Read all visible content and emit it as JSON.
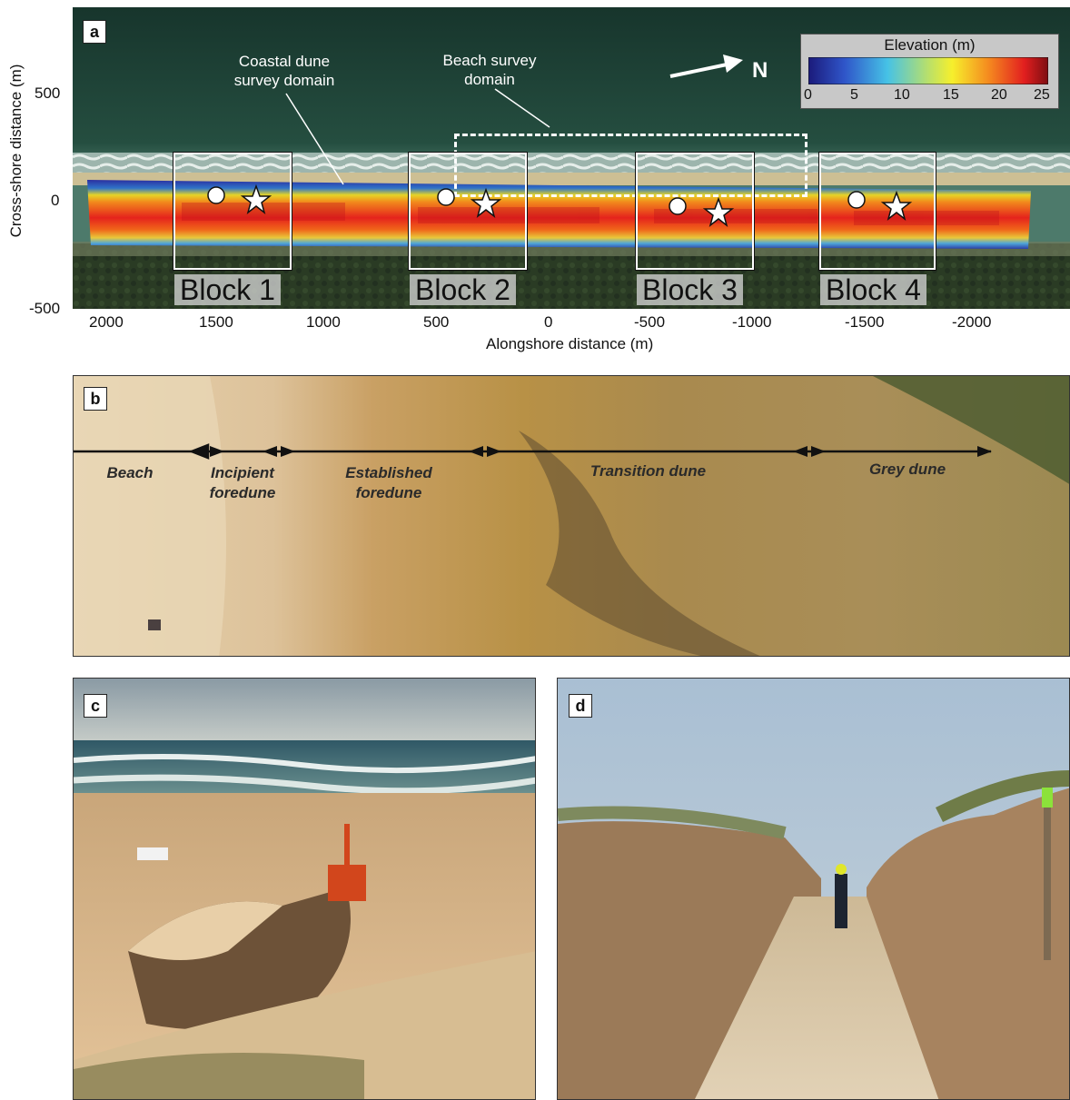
{
  "panel_a": {
    "letter": "a",
    "y_axis_label": "Cross-shore distance (m)",
    "x_axis_label": "Alongshore distance (m)",
    "y_ticks": [
      "500",
      "0",
      "-500"
    ],
    "x_ticks": [
      "2000",
      "1500",
      "1000",
      "500",
      "0",
      "-500",
      "-1000",
      "-1500",
      "-2000"
    ],
    "legend_title": "Elevation (m)",
    "legend_ticks": [
      "0",
      "5",
      "10",
      "15",
      "20",
      "25"
    ],
    "north_label": "N",
    "annotation_dune": "Coastal dune\nsurvey domain",
    "annotation_beach": "Beach survey\ndomain",
    "blocks": [
      "Block 1",
      "Block 2",
      "Block 3",
      "Block 4"
    ],
    "colors": {
      "ocean": "#1f3d33",
      "forest": "#2b3a22",
      "beach": "#c9b98a"
    }
  },
  "panel_b": {
    "letter": "b",
    "zones": [
      "Beach",
      "Incipient\nforedune",
      "Established\nforedune",
      "Transition dune",
      "Grey dune"
    ]
  },
  "panel_c": {
    "letter": "c"
  },
  "panel_d": {
    "letter": "d"
  }
}
